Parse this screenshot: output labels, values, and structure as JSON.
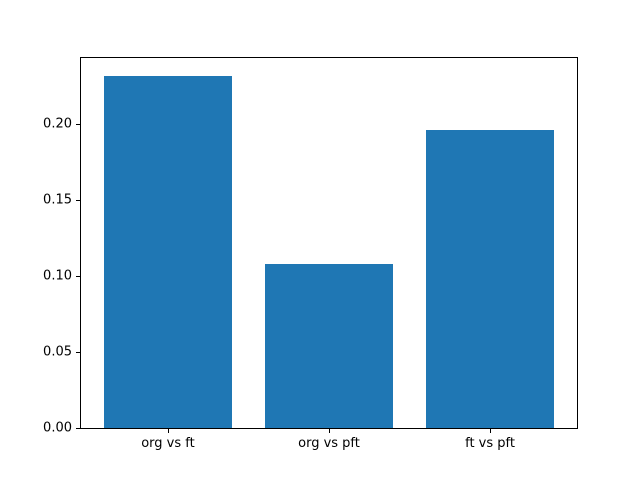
{
  "chart_data": {
    "type": "bar",
    "categories": [
      "org vs ft",
      "org vs pft",
      "ft vs pft"
    ],
    "values": [
      0.232,
      0.108,
      0.196
    ],
    "title": "",
    "xlabel": "",
    "ylabel": "",
    "ylim": [
      0,
      0.2436
    ],
    "xlim": [
      -0.54,
      2.54
    ],
    "yticks": [
      0.0,
      0.05,
      0.1,
      0.15,
      0.2
    ],
    "bar_width": 0.8,
    "bar_color": "#1f77b4",
    "grid": false,
    "legend": "none",
    "background_color": "#ffffff",
    "axis_color": "#000000"
  }
}
